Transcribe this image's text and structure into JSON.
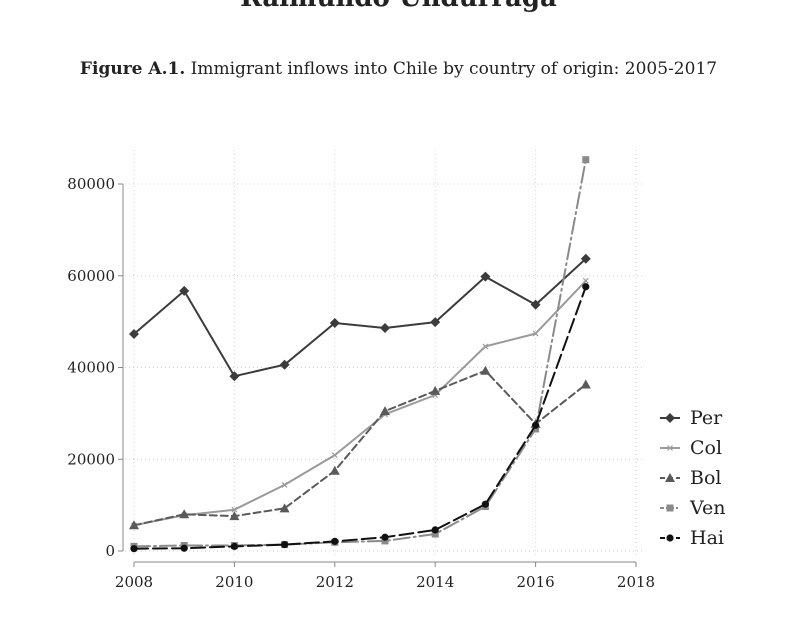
{
  "header": {
    "running_head": "Raimundo Undurraga"
  },
  "caption": {
    "label": "Figure A.1.",
    "text": "Immigrant inflows into Chile by country of origin: 2005-2017"
  },
  "chart_data": {
    "type": "line",
    "title": "",
    "xlabel": "",
    "ylabel": "",
    "xlim": [
      2008,
      2018
    ],
    "ylim": [
      0,
      80000
    ],
    "x_ticks": [
      2008,
      2010,
      2012,
      2014,
      2016,
      2018
    ],
    "y_ticks": [
      0,
      20000,
      40000,
      60000,
      80000
    ],
    "grid": true,
    "legend_position": "right",
    "x": [
      2008,
      2009,
      2010,
      2011,
      2012,
      2013,
      2014,
      2015,
      2016,
      2017
    ],
    "series": [
      {
        "name": "Per",
        "color": "#3c3c3c",
        "dash": "solid",
        "marker": "diamond",
        "values": [
          47300,
          56700,
          38100,
          40600,
          49700,
          48600,
          49900,
          59800,
          53700,
          63700
        ]
      },
      {
        "name": "Col",
        "color": "#9a9a9a",
        "dash": "solid",
        "marker": "x",
        "values": [
          5600,
          7800,
          9000,
          14400,
          20900,
          29800,
          34000,
          44600,
          47400,
          58900
        ]
      },
      {
        "name": "Bol",
        "color": "#5a5a5a",
        "dash": "dash",
        "marker": "triangle",
        "values": [
          5600,
          8000,
          7600,
          9300,
          17500,
          30500,
          34900,
          39300,
          27700,
          36300
        ]
      },
      {
        "name": "Ven",
        "color": "#8a8a8a",
        "dash": "longdashdot",
        "marker": "square",
        "values": [
          1000,
          1200,
          1200,
          1400,
          1900,
          2200,
          3700,
          9700,
          26600,
          85300
        ]
      },
      {
        "name": "Hai",
        "color": "#111111",
        "dash": "longdash",
        "marker": "circle",
        "values": [
          500,
          600,
          1000,
          1400,
          2100,
          3000,
          4600,
          10200,
          27400,
          57600
        ]
      }
    ]
  }
}
